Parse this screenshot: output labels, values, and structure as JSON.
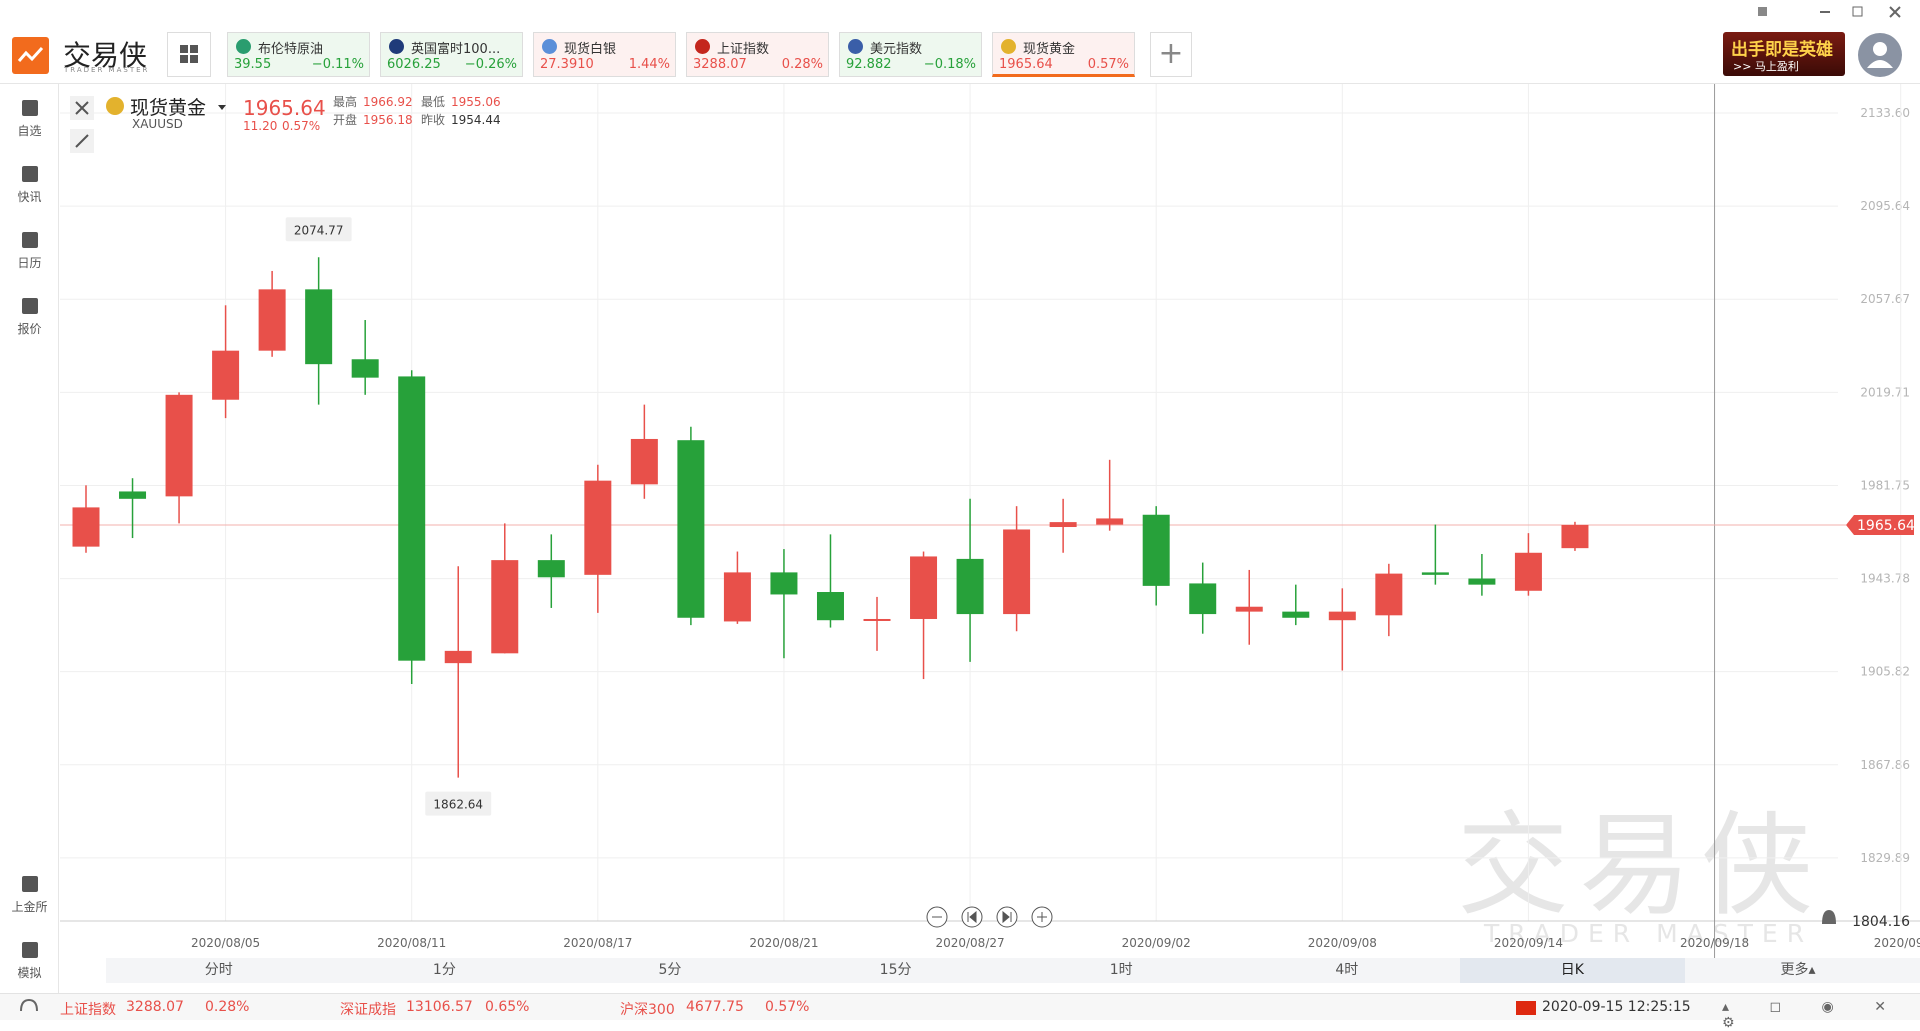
{
  "app": {
    "logo": "交易侠",
    "logo_sub": "TRADER MASTER",
    "ad": {
      "title": "出手即是英雄",
      "sub": ">> 马上盈利"
    }
  },
  "tickers": [
    {
      "name": "布伦特原油",
      "price": "39.55",
      "change": "−0.11%",
      "color": "green"
    },
    {
      "name": "英国富时100...",
      "price": "6026.25",
      "change": "−0.26%",
      "color": "green"
    },
    {
      "name": "现货白银",
      "price": "27.3910",
      "change": "1.44%",
      "color": "red"
    },
    {
      "name": "上证指数",
      "price": "3288.07",
      "change": "0.28%",
      "color": "red"
    },
    {
      "name": "美元指数",
      "price": "92.882",
      "change": "−0.18%",
      "color": "green"
    },
    {
      "name": "现货黄金",
      "price": "1965.64",
      "change": "0.57%",
      "color": "red",
      "selected": true
    }
  ],
  "sidebar": {
    "top": [
      "自选",
      "快讯",
      "日历",
      "报价"
    ],
    "bottom": [
      "上金所",
      "模拟"
    ]
  },
  "header": {
    "name": "现货黄金",
    "symbol": "XAUUSD",
    "price": "1965.64",
    "change": "11.20",
    "change_pct": "0.57%",
    "stats": [
      {
        "label": "最高",
        "value": "1966.92"
      },
      {
        "label": "开盘",
        "value": "1956.18"
      },
      {
        "label": "最低",
        "value": "1955.06"
      },
      {
        "label": "昨收",
        "value": "1954.44"
      }
    ]
  },
  "chart_data": {
    "type": "candlestick",
    "categories": [
      null,
      null,
      null,
      "2020/08/05",
      null,
      null,
      null,
      "2020/08/11",
      null,
      null,
      null,
      "2020/08/17",
      null,
      null,
      null,
      "2020/08/21",
      null,
      null,
      null,
      "2020/08/27",
      null,
      null,
      null,
      "2020/09/02",
      null,
      null,
      null,
      "2020/09/08",
      null,
      null,
      null,
      "2020/09/14",
      null,
      null,
      null,
      "2020/09/18",
      null,
      null,
      null,
      "2020/09/"
    ],
    "open": [
      1956.8,
      1979.3,
      1977.3,
      2016.7,
      2036.7,
      2061.7,
      2033.2,
      2026.2,
      1909.3,
      1913.3,
      1951.3,
      1945.3,
      1982.2,
      2000.2,
      1926.3,
      1946.3,
      1938.3,
      1926.8,
      1927.3,
      1951.8,
      1929.3,
      1964.8,
      1965.8,
      1969.8,
      1941.8,
      1930.3,
      1930.3,
      1926.8,
      1928.8,
      1946.3,
      1943.8,
      1938.8,
      1956.18,
      null,
      null,
      null,
      null,
      null,
      null,
      null
    ],
    "high": [
      1981.8,
      1984.7,
      2019.7,
      2055.2,
      2069.2,
      2074.77,
      2049.2,
      2028.7,
      1948.8,
      1966.3,
      1961.8,
      1990.2,
      2014.7,
      2005.7,
      1954.8,
      1955.8,
      1961.8,
      1936.3,
      1954.8,
      1976.3,
      1973.3,
      1976.3,
      1992.2,
      1973.3,
      1950.3,
      1947.3,
      1941.3,
      1939.8,
      1949.8,
      1965.8,
      1953.8,
      1962.3,
      1966.92,
      null,
      null,
      null,
      null,
      null,
      null,
      null
    ],
    "low": [
      1954.3,
      1960.3,
      1966.3,
      2009.2,
      2034.2,
      2014.7,
      2018.7,
      1900.8,
      1862.64,
      1913.3,
      1931.8,
      1929.8,
      1976.3,
      1924.8,
      1925.3,
      1911.3,
      1923.8,
      1914.3,
      1902.8,
      1909.8,
      1922.3,
      1954.3,
      1963.3,
      1932.8,
      1921.3,
      1916.8,
      1924.8,
      1906.3,
      1920.3,
      1941.3,
      1936.8,
      1936.8,
      1955.06,
      null,
      null,
      null,
      null,
      null,
      null,
      null
    ],
    "close": [
      1972.8,
      1976.3,
      2018.7,
      2036.7,
      2061.7,
      2031.2,
      2025.7,
      1910.3,
      1914.3,
      1951.3,
      1944.3,
      1983.7,
      2000.7,
      1927.8,
      1946.3,
      1937.3,
      1926.8,
      1927.3,
      1952.8,
      1929.3,
      1963.8,
      1966.8,
      1968.3,
      1940.8,
      1929.3,
      1932.3,
      1927.8,
      1930.3,
      1945.8,
      1945.3,
      1941.3,
      1954.3,
      1965.64,
      null,
      null,
      null,
      null,
      null,
      null,
      null
    ],
    "up_color": "#e8504a",
    "down_color": "#27a13a",
    "ylim": [
      1804.16,
      2143.8
    ],
    "yticks": [
      {
        "value": 2133.6,
        "label": "2133.60"
      },
      2095.64,
      2057.67,
      2019.71,
      1981.75,
      1943.78,
      1905.82,
      1867.86,
      1829.89
    ],
    "grid": true,
    "max_label": 2074.77,
    "min_label": 1862.64,
    "last_price": 1965.64,
    "axis_readout": 1804.16,
    "watermark": "交易侠",
    "watermark_sub": "TRADER MASTER"
  },
  "timeframes": {
    "items": [
      "分时",
      "1分",
      "5分",
      "15分",
      "1时",
      "4时",
      "日K",
      "更多▴"
    ],
    "selected": 6
  },
  "status_bar": {
    "quotes": [
      {
        "name": "上证指数",
        "price": "3288.07",
        "change": "0.28%"
      },
      {
        "name": "深证成指",
        "price": "13106.57",
        "change": "0.65%"
      },
      {
        "name": "沪深300",
        "price": "4677.75",
        "change": "0.57%"
      }
    ],
    "time": "2020-09-15 12:25:15"
  }
}
